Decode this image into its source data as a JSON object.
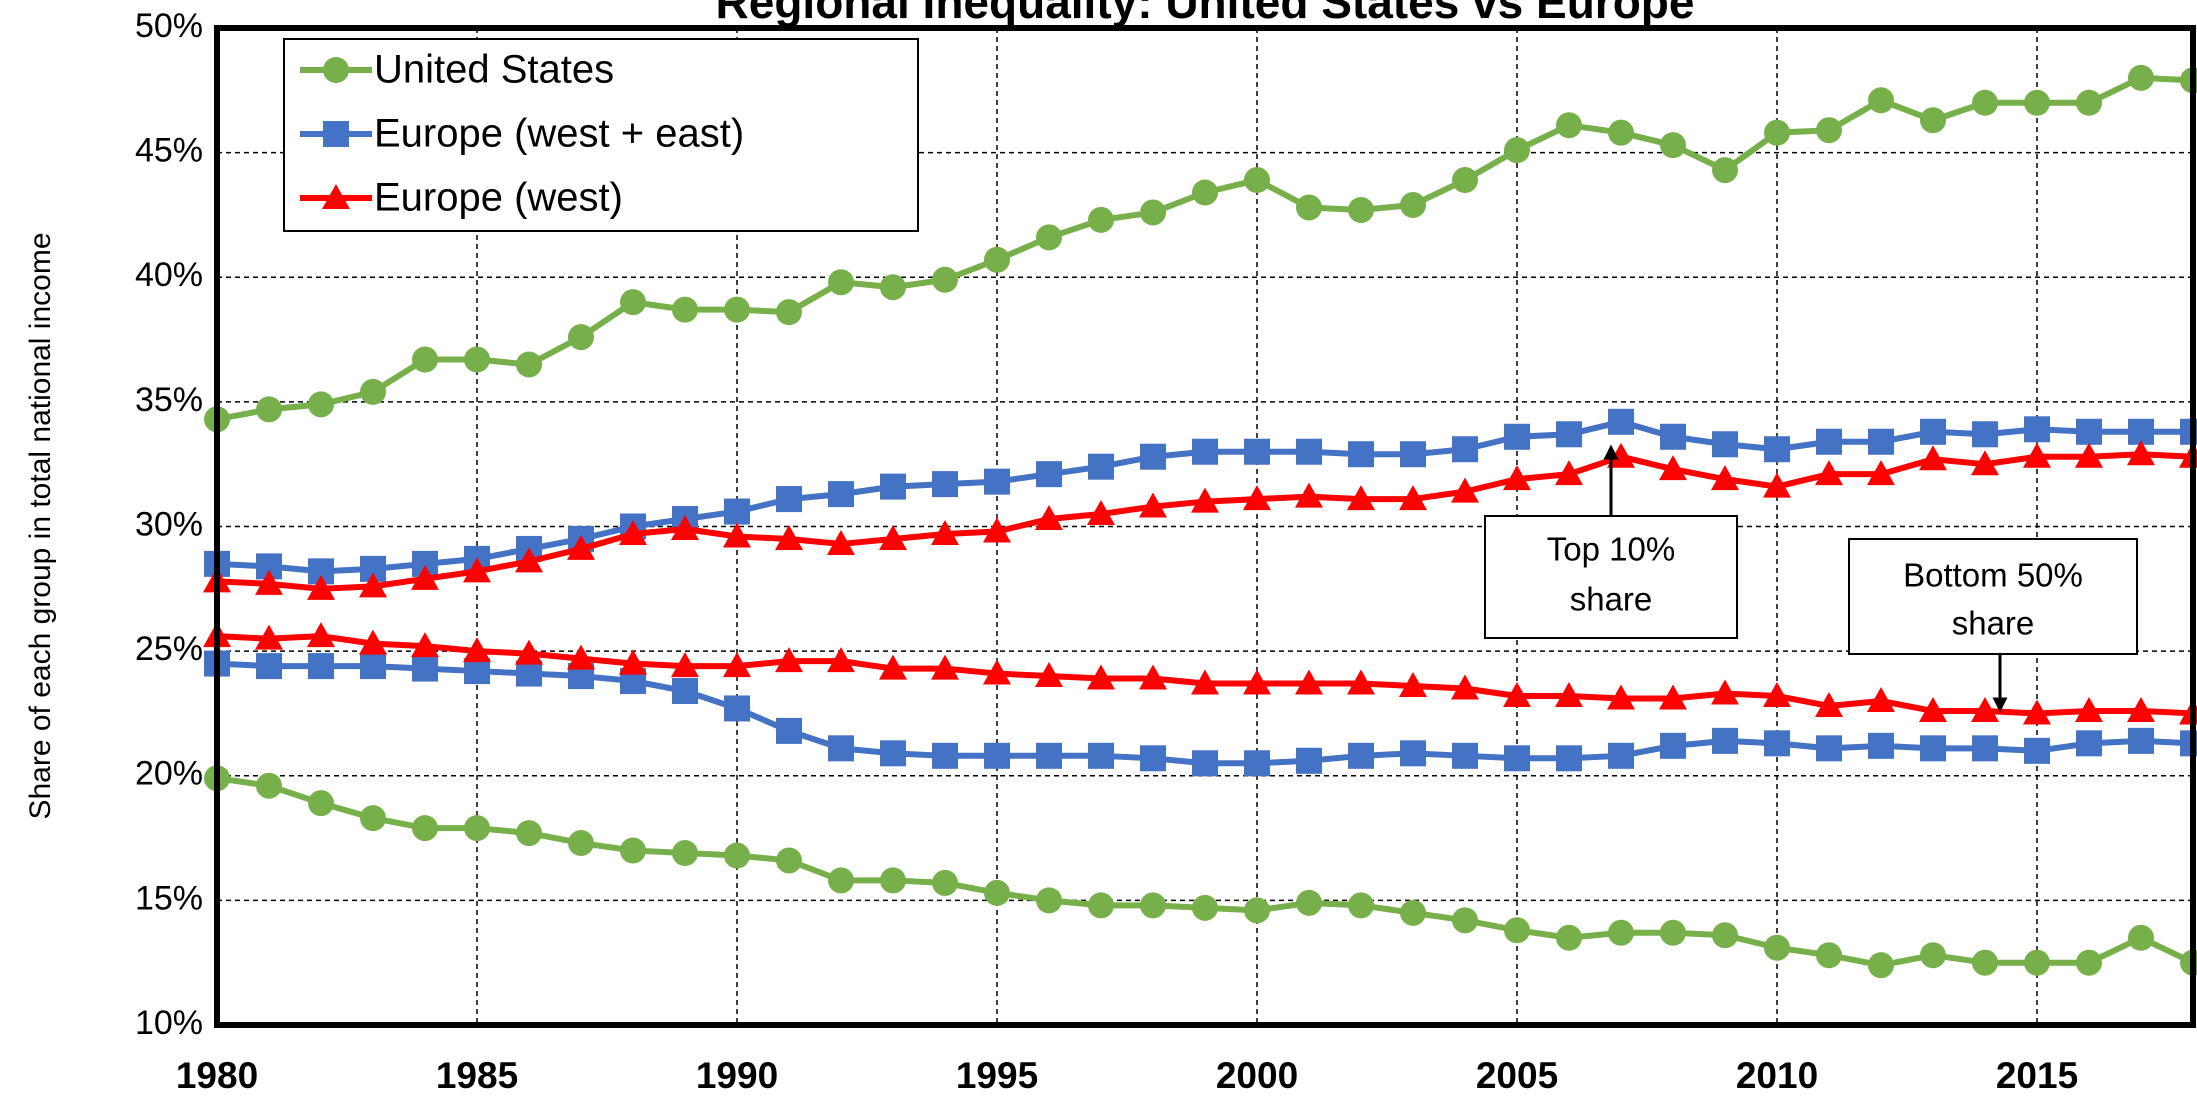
{
  "chart_data": {
    "type": "line",
    "title": "Regional Inequality: United States vs Europe",
    "y_label": "Share of each group in total national income",
    "xlim": [
      1980,
      2018
    ],
    "xticks": [
      1980,
      1985,
      1990,
      1995,
      2000,
      2005,
      2010,
      2015
    ],
    "ylim": [
      10,
      50
    ],
    "yticks": [
      {
        "value": 10,
        "label": "10%"
      },
      {
        "value": 15,
        "label": "15%"
      },
      {
        "value": 20,
        "label": "20%"
      },
      {
        "value": 25,
        "label": "25%"
      },
      {
        "value": 30,
        "label": "30%"
      },
      {
        "value": 35,
        "label": "35%"
      },
      {
        "value": 40,
        "label": "40%"
      },
      {
        "value": 45,
        "label": "45%"
      },
      {
        "value": 50,
        "label": "50%"
      }
    ],
    "grid": true,
    "legend": "top-left",
    "x": [
      1980,
      1981,
      1982,
      1983,
      1984,
      1985,
      1986,
      1987,
      1988,
      1989,
      1990,
      1991,
      1992,
      1993,
      1994,
      1995,
      1996,
      1997,
      1998,
      1999,
      2000,
      2001,
      2002,
      2003,
      2004,
      2005,
      2006,
      2007,
      2008,
      2009,
      2010,
      2011,
      2012,
      2013,
      2014,
      2015,
      2016,
      2017,
      2018
    ],
    "series": [
      {
        "name": "United States",
        "color": "#77b04a",
        "marker": "circle",
        "values": [
          34.3,
          34.7,
          34.9,
          35.4,
          36.7,
          36.7,
          36.5,
          37.6,
          39.0,
          38.7,
          38.7,
          38.6,
          39.8,
          39.6,
          39.9,
          40.7,
          41.6,
          42.3,
          42.6,
          43.4,
          43.9,
          42.8,
          42.7,
          42.9,
          43.9,
          45.1,
          46.1,
          45.8,
          45.3,
          44.3,
          45.8,
          45.9,
          47.1,
          46.3,
          47.0,
          47.0,
          47.0,
          48.0,
          47.9
        ],
        "values_bottom": [
          19.9,
          19.6,
          18.9,
          18.3,
          17.9,
          17.9,
          17.7,
          17.3,
          17.0,
          16.9,
          16.8,
          16.6,
          15.8,
          15.8,
          15.7,
          15.3,
          15.0,
          14.8,
          14.8,
          14.7,
          14.6,
          14.9,
          14.8,
          14.5,
          14.2,
          13.8,
          13.5,
          13.7,
          13.7,
          13.6,
          13.1,
          12.8,
          12.4,
          12.8,
          12.5,
          12.5,
          12.5,
          13.5,
          12.5
        ]
      },
      {
        "name": "Europe (west + east)",
        "color": "#4472c4",
        "marker": "square",
        "values": [
          28.5,
          28.4,
          28.2,
          28.3,
          28.5,
          28.7,
          29.1,
          29.5,
          30.0,
          30.3,
          30.6,
          31.1,
          31.3,
          31.6,
          31.7,
          31.8,
          32.1,
          32.4,
          32.8,
          33.0,
          33.0,
          33.0,
          32.9,
          32.9,
          33.1,
          33.6,
          33.7,
          34.2,
          33.6,
          33.3,
          33.1,
          33.4,
          33.4,
          33.8,
          33.7,
          33.9,
          33.8,
          33.8,
          33.8
        ],
        "values_bottom": [
          24.5,
          24.4,
          24.4,
          24.4,
          24.3,
          24.2,
          24.1,
          24.0,
          23.8,
          23.4,
          22.7,
          21.8,
          21.1,
          20.9,
          20.8,
          20.8,
          20.8,
          20.8,
          20.7,
          20.5,
          20.5,
          20.6,
          20.8,
          20.9,
          20.8,
          20.7,
          20.7,
          20.8,
          21.2,
          21.4,
          21.3,
          21.1,
          21.2,
          21.1,
          21.1,
          21.0,
          21.3,
          21.4,
          21.3
        ]
      },
      {
        "name": "Europe (west)",
        "color": "#ff0000",
        "marker": "triangle",
        "values": [
          27.8,
          27.7,
          27.5,
          27.6,
          27.9,
          28.2,
          28.6,
          29.1,
          29.7,
          29.9,
          29.6,
          29.5,
          29.3,
          29.5,
          29.7,
          29.8,
          30.3,
          30.5,
          30.8,
          31.0,
          31.1,
          31.2,
          31.1,
          31.1,
          31.4,
          31.9,
          32.1,
          32.8,
          32.3,
          31.9,
          31.6,
          32.1,
          32.1,
          32.7,
          32.5,
          32.8,
          32.8,
          32.9,
          32.8
        ],
        "values_bottom": [
          25.6,
          25.5,
          25.6,
          25.3,
          25.2,
          25.0,
          24.9,
          24.7,
          24.5,
          24.4,
          24.4,
          24.6,
          24.6,
          24.3,
          24.3,
          24.1,
          24.0,
          23.9,
          23.9,
          23.7,
          23.7,
          23.7,
          23.7,
          23.6,
          23.5,
          23.2,
          23.2,
          23.1,
          23.1,
          23.3,
          23.2,
          22.8,
          23.0,
          22.6,
          22.6,
          22.5,
          22.6,
          22.6,
          22.5
        ]
      }
    ],
    "annotations": [
      {
        "lines": [
          "Top 10%",
          "share"
        ]
      },
      {
        "lines": [
          "Bottom 50%",
          "share"
        ]
      }
    ]
  }
}
